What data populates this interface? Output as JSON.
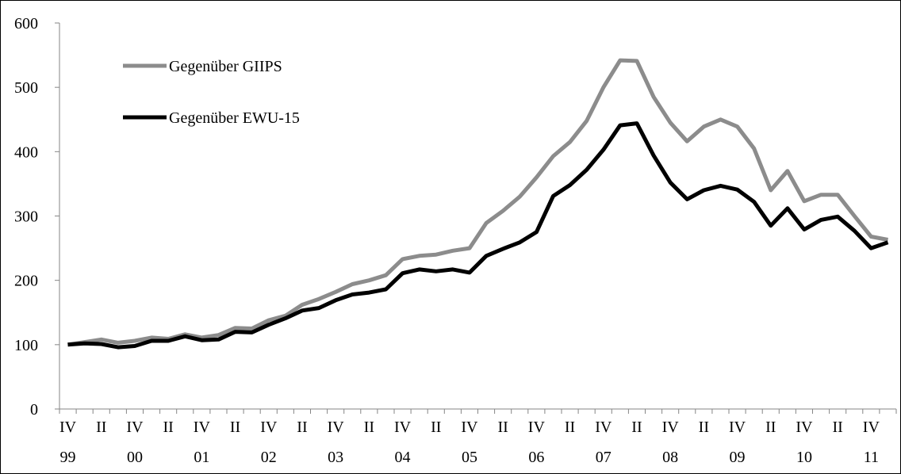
{
  "chart_data": {
    "type": "line",
    "categories": [
      "IV\n99",
      null,
      "II",
      null,
      "IV\n00",
      null,
      "II",
      null,
      "IV\n01",
      null,
      "II",
      null,
      "IV\n02",
      null,
      "II",
      null,
      "IV\n03",
      null,
      "II",
      null,
      "IV\n04",
      null,
      "II",
      null,
      "IV\n05",
      null,
      "II",
      null,
      "IV\n06",
      null,
      "II",
      null,
      "IV\n07",
      null,
      "II",
      null,
      "IV\n08",
      null,
      "II",
      null,
      "IV\n09",
      null,
      "II",
      null,
      "IV\n10",
      null,
      "II",
      null,
      "IV\n11",
      null
    ],
    "series": [
      {
        "name": "Gegenüber GIIPS",
        "color": "#8c8c8c",
        "values": [
          100,
          104,
          108,
          103,
          106,
          111,
          109,
          116,
          111,
          115,
          126,
          125,
          138,
          145,
          162,
          171,
          182,
          194,
          200,
          208,
          233,
          238,
          240,
          246,
          250,
          289,
          308,
          330,
          360,
          393,
          415,
          448,
          500,
          542,
          541,
          485,
          445,
          416,
          439,
          450,
          439,
          405,
          340,
          370,
          323,
          333,
          333,
          300,
          268,
          263
        ]
      },
      {
        "name": "Gegenüber EWU-15",
        "color": "#000000",
        "values": [
          100,
          102,
          101,
          96,
          98,
          106,
          106,
          113,
          107,
          108,
          120,
          119,
          131,
          141,
          153,
          157,
          169,
          178,
          181,
          186,
          211,
          217,
          214,
          217,
          212,
          238,
          249,
          259,
          275,
          331,
          348,
          372,
          403,
          441,
          444,
          394,
          352,
          326,
          340,
          347,
          341,
          322,
          285,
          312,
          279,
          294,
          299,
          277,
          250,
          259
        ]
      }
    ],
    "ylim": [
      0,
      600
    ],
    "yticks": [
      0,
      100,
      200,
      300,
      400,
      500,
      600
    ],
    "grid": false
  }
}
